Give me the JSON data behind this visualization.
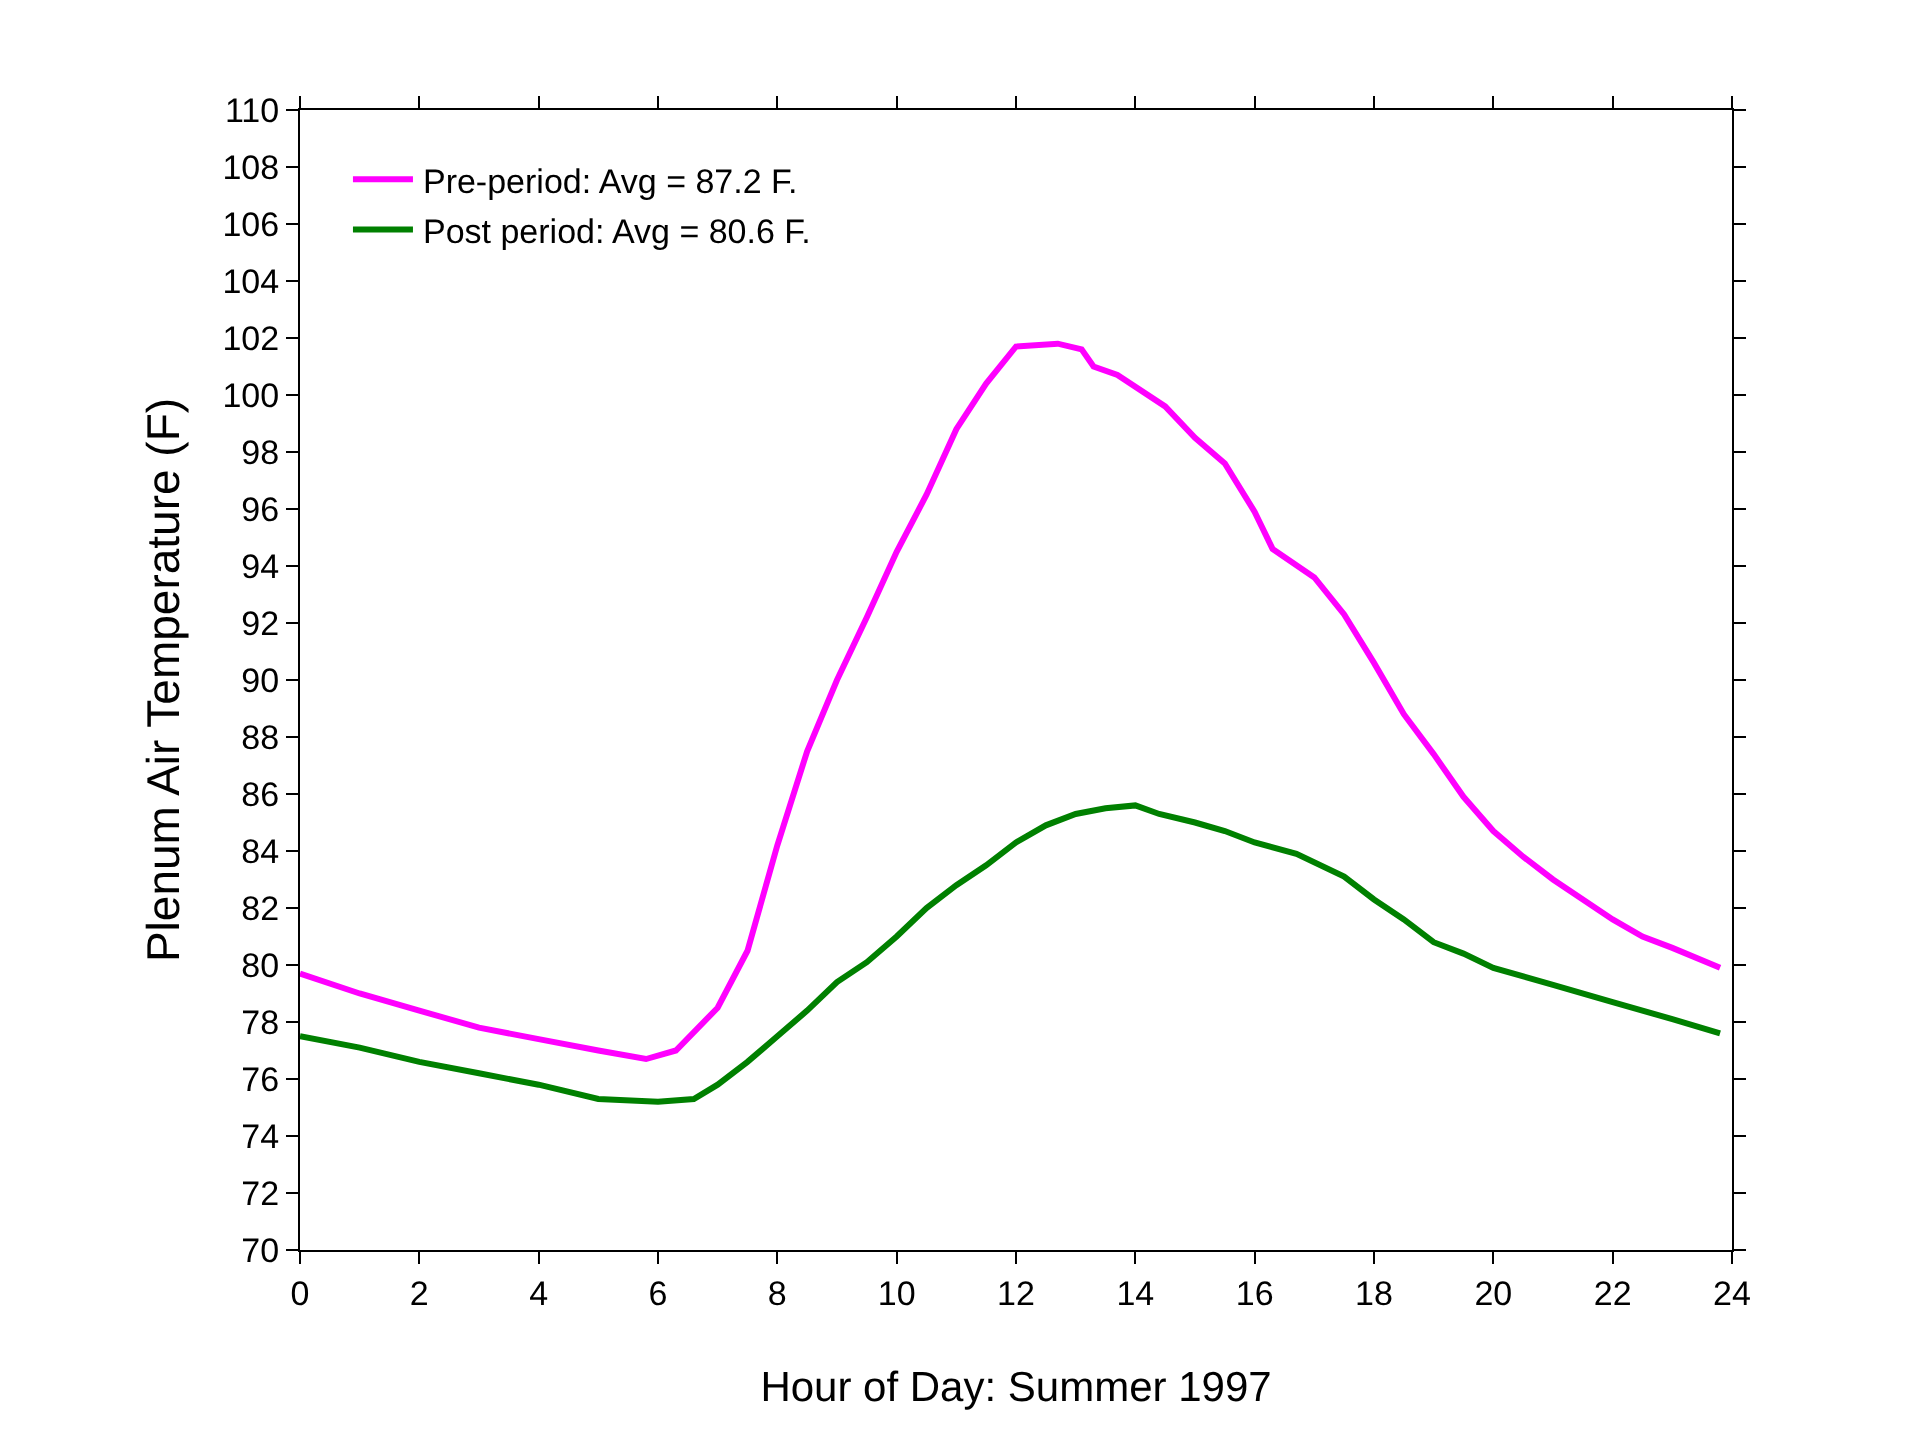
{
  "chart_data": {
    "type": "line",
    "xlabel": "Hour of Day: Summer 1997",
    "ylabel": "Plenum Air Temperature (F)",
    "xlim": [
      0,
      24
    ],
    "xticks": [
      0,
      2,
      4,
      6,
      8,
      10,
      12,
      14,
      16,
      18,
      20,
      22,
      24
    ],
    "ylim": [
      70,
      110
    ],
    "yticks": [
      70,
      72,
      74,
      76,
      78,
      80,
      82,
      84,
      86,
      88,
      90,
      92,
      94,
      96,
      98,
      100,
      102,
      104,
      106,
      108,
      110
    ],
    "legend": "top left",
    "marker": "none",
    "line_style": "solid",
    "series": [
      {
        "name": "Pre-period: Avg = 87.2 F.",
        "color": "#ff00ff",
        "x": [
          0,
          1,
          2,
          3,
          4,
          5,
          5.8,
          6.3,
          7,
          7.5,
          8,
          8.5,
          9,
          9.5,
          10,
          10.5,
          11,
          11.5,
          12,
          12.7,
          13.1,
          13.3,
          13.7,
          14.5,
          15,
          15.5,
          16,
          16.3,
          17,
          17.5,
          18,
          18.5,
          19,
          19.5,
          20,
          20.5,
          21,
          21.5,
          22,
          22.5,
          23,
          23.8
        ],
        "values": [
          79.7,
          79.0,
          78.4,
          77.8,
          77.4,
          77.0,
          76.7,
          77.0,
          78.5,
          80.5,
          84.2,
          87.5,
          90.0,
          92.2,
          94.5,
          96.5,
          98.8,
          100.4,
          101.7,
          101.8,
          101.6,
          101.0,
          100.7,
          99.6,
          98.5,
          97.6,
          95.9,
          94.6,
          93.6,
          92.3,
          90.6,
          88.8,
          87.4,
          85.9,
          84.7,
          83.8,
          83.0,
          82.3,
          81.6,
          81.0,
          80.6,
          79.9
        ]
      },
      {
        "name": "Post period: Avg = 80.6 F.",
        "color": "#008000",
        "x": [
          0,
          1,
          2,
          3,
          4,
          5,
          6,
          6.6,
          7,
          7.5,
          8,
          8.5,
          9,
          9.5,
          10,
          10.5,
          11,
          11.5,
          12,
          12.5,
          13,
          13.5,
          14,
          14.4,
          15,
          15.5,
          16,
          16.7,
          17.5,
          18,
          18.5,
          19,
          19.5,
          20,
          21,
          22,
          23,
          23.8
        ],
        "values": [
          77.5,
          77.1,
          76.6,
          76.2,
          75.8,
          75.3,
          75.2,
          75.3,
          75.8,
          76.6,
          77.5,
          78.4,
          79.4,
          80.1,
          81.0,
          82.0,
          82.8,
          83.5,
          84.3,
          84.9,
          85.3,
          85.5,
          85.6,
          85.3,
          85.0,
          84.7,
          84.3,
          83.9,
          83.1,
          82.3,
          81.6,
          80.8,
          80.4,
          79.9,
          79.3,
          78.7,
          78.1,
          77.6
        ]
      }
    ]
  }
}
